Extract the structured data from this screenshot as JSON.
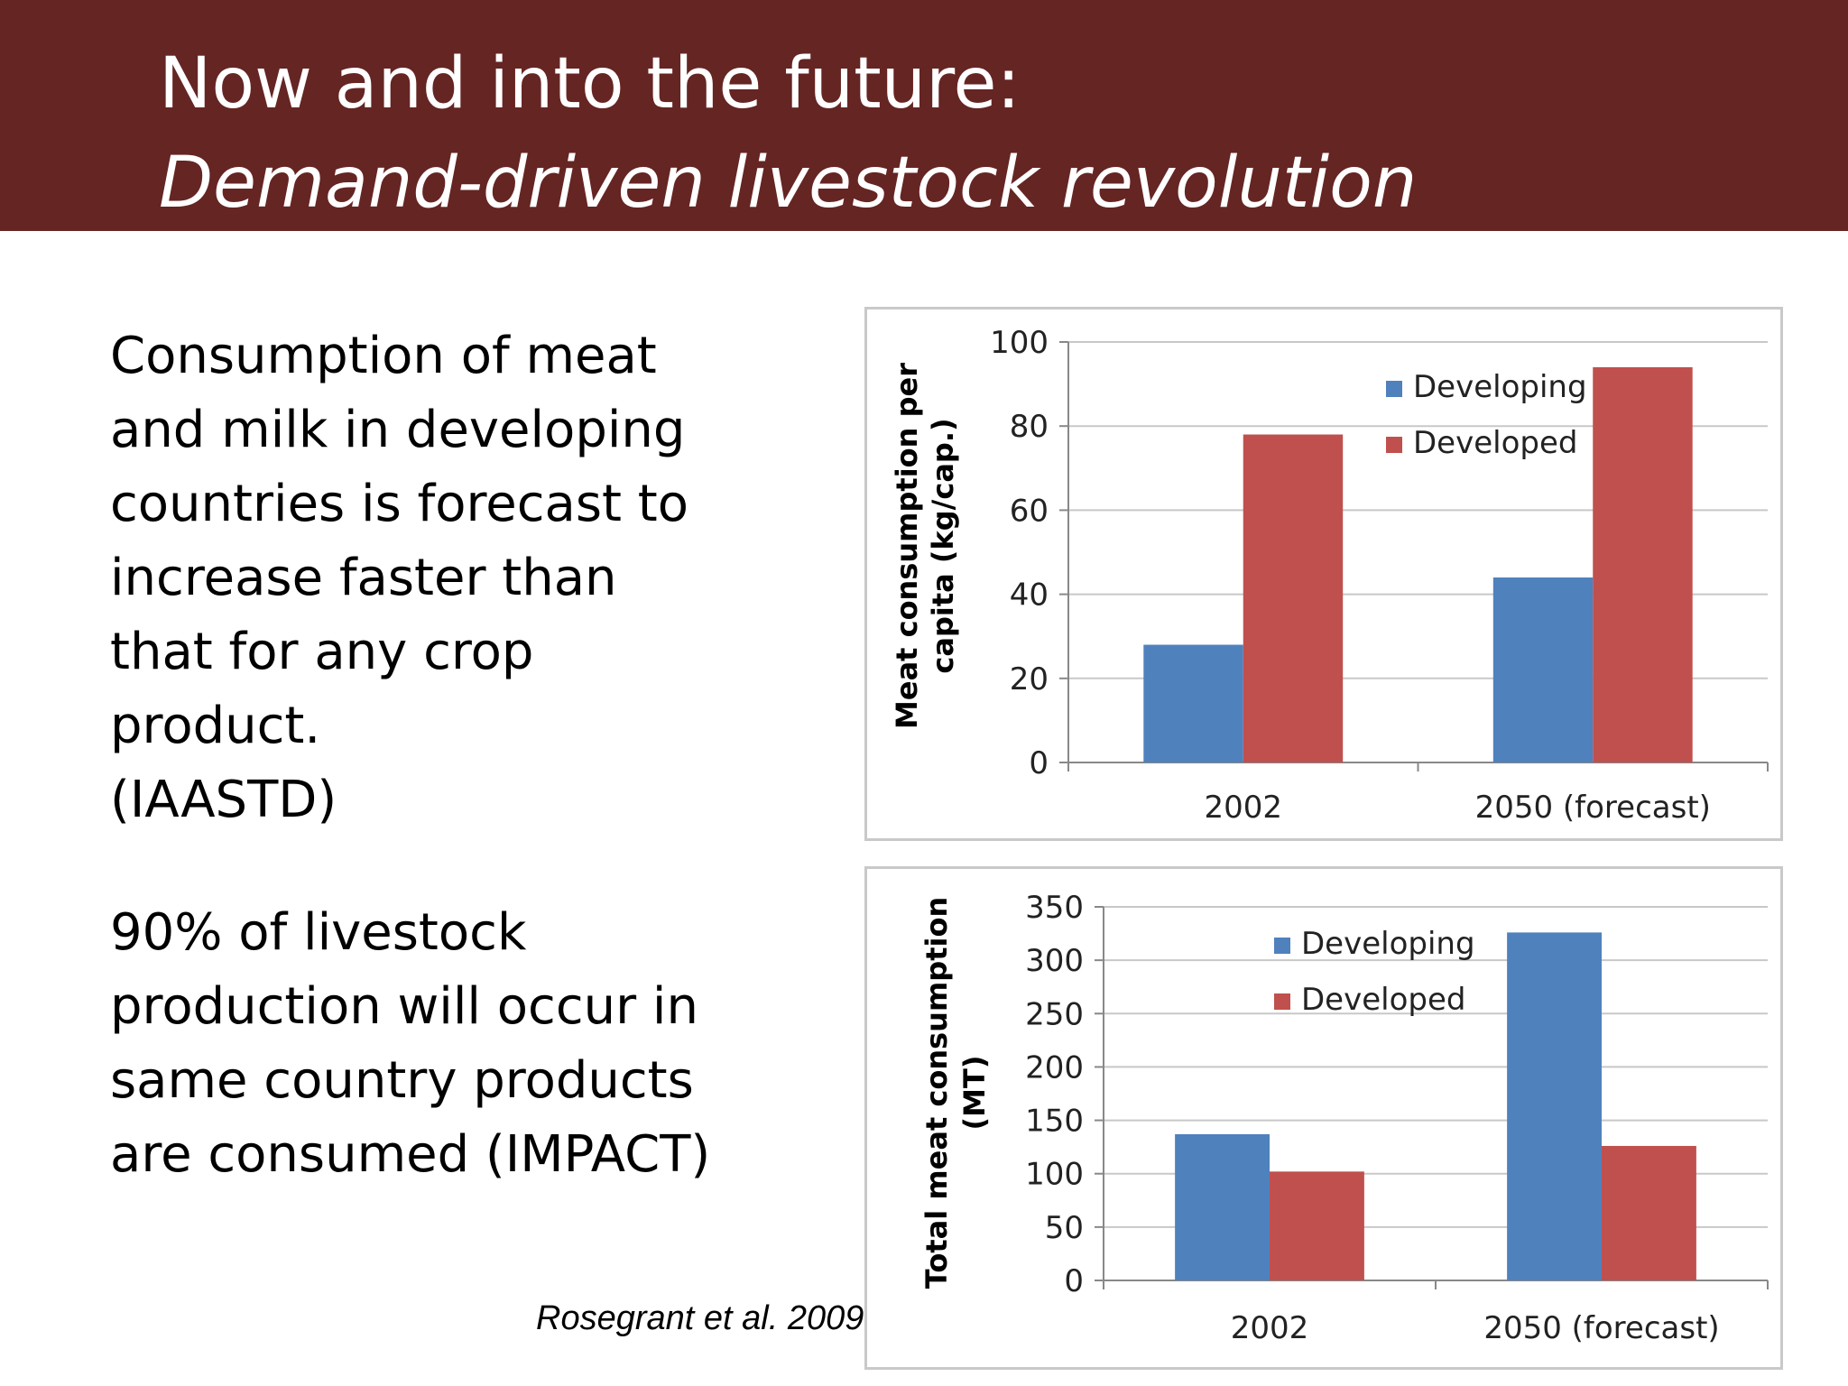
{
  "slide": {
    "title_line1": "Now and into the future:",
    "title_line2": "Demand-driven livestock revolution",
    "title_bar_color": "#652523",
    "paragraph1_lines": [
      "Consumption of meat",
      "and milk in developing",
      "countries is forecast to",
      "increase faster than",
      "that for any crop",
      "product.",
      "(IAASTD)"
    ],
    "paragraph2_lines": [
      "90% of livestock",
      "production will occur in",
      "same country products",
      "are consumed (IMPACT)"
    ],
    "citation": "Rosegrant et al. 2009"
  },
  "chart_data": [
    {
      "type": "bar",
      "categories": [
        "2002",
        "2050 (forecast)"
      ],
      "series": [
        {
          "name": "Developing",
          "values": [
            28,
            44
          ],
          "color": "#4f81bd"
        },
        {
          "name": "Developed",
          "values": [
            78,
            94
          ],
          "color": "#c0504d"
        }
      ],
      "ylabel_lines": [
        "Meat consumption per",
        "capita (kg/cap.)"
      ],
      "ylim": [
        0,
        100
      ],
      "yticks": [
        0,
        20,
        40,
        60,
        80,
        100
      ],
      "grid": true,
      "legend_position": "top-right"
    },
    {
      "type": "bar",
      "categories": [
        "2002",
        "2050 (forecast)"
      ],
      "series": [
        {
          "name": "Developing",
          "values": [
            137,
            326
          ],
          "color": "#4f81bd"
        },
        {
          "name": "Developed",
          "values": [
            102,
            126
          ],
          "color": "#c0504d"
        }
      ],
      "ylabel_lines": [
        "Total meat consumption",
        "(MT)"
      ],
      "ylim": [
        0,
        350
      ],
      "yticks": [
        0,
        50,
        100,
        150,
        200,
        250,
        300,
        350
      ],
      "grid": true,
      "legend_position": "top-center"
    }
  ]
}
